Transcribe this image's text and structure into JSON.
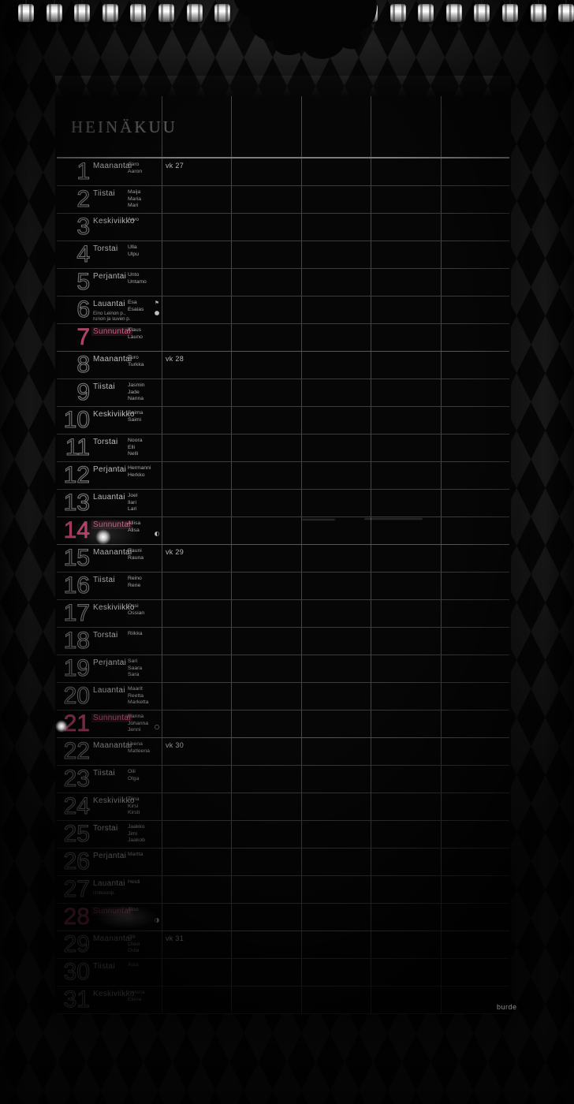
{
  "page": {
    "title": "HEINÄKUU",
    "brand": "burde"
  },
  "colors": {
    "sunday_accent": "#d6416f",
    "pattern_gray": "#2f2f2f",
    "pattern_black": "#0c0c0c",
    "paper": "#060606",
    "grid_line": "#474747"
  },
  "icons": {
    "flag": "⚑",
    "new-moon": "●",
    "first-quarter": "◐",
    "full-moon": "○",
    "last-quarter": "◑"
  },
  "days": [
    {
      "n": 1,
      "wd": "Maanantai",
      "names": [
        "Aaro",
        "Aaron"
      ],
      "wk": "vk 27"
    },
    {
      "n": 2,
      "wd": "Tiistai",
      "names": [
        "Maija",
        "Maria",
        "Mari"
      ]
    },
    {
      "n": 3,
      "wd": "Keskiviikko",
      "names": [
        "Arvo"
      ]
    },
    {
      "n": 4,
      "wd": "Torstai",
      "names": [
        "Ulla",
        "Ulpu"
      ]
    },
    {
      "n": 5,
      "wd": "Perjantai",
      "names": [
        "Unto",
        "Untamo"
      ]
    },
    {
      "n": 6,
      "wd": "Lauantai",
      "names": [
        "Esa",
        "Esaias"
      ],
      "special": "Eino Leinon p., runon ja suven p.",
      "flag": true,
      "moon": "new-moon"
    },
    {
      "n": 7,
      "wd": "Sunnuntai",
      "names": [
        "Klaus",
        "Launo"
      ],
      "sun": true
    },
    {
      "n": 8,
      "wd": "Maanantai",
      "names": [
        "Turo",
        "Turkka"
      ],
      "wk": "vk 28"
    },
    {
      "n": 9,
      "wd": "Tiistai",
      "names": [
        "Jasmin",
        "Jade",
        "Nanna"
      ]
    },
    {
      "n": 10,
      "wd": "Keskiviikko",
      "names": [
        "Saima",
        "Saimi"
      ]
    },
    {
      "n": 11,
      "wd": "Torstai",
      "names": [
        "Noora",
        "Elli",
        "Nelli"
      ]
    },
    {
      "n": 12,
      "wd": "Perjantai",
      "names": [
        "Hermanni",
        "Herkko"
      ]
    },
    {
      "n": 13,
      "wd": "Lauantai",
      "names": [
        "Joel",
        "Ilari",
        "Lari"
      ]
    },
    {
      "n": 14,
      "wd": "Sunnuntai",
      "names": [
        "Aliisa",
        "Alisa"
      ],
      "sun": true,
      "moon": "first-quarter"
    },
    {
      "n": 15,
      "wd": "Maanantai",
      "names": [
        "Rauni",
        "Rauna"
      ],
      "wk": "vk 29"
    },
    {
      "n": 16,
      "wd": "Tiistai",
      "names": [
        "Reino",
        "Rene"
      ]
    },
    {
      "n": 17,
      "wd": "Keskiviikko",
      "names": [
        "Ossi",
        "Ossian"
      ]
    },
    {
      "n": 18,
      "wd": "Torstai",
      "names": [
        "Riikka"
      ]
    },
    {
      "n": 19,
      "wd": "Perjantai",
      "names": [
        "Sari",
        "Saara",
        "Sara"
      ]
    },
    {
      "n": 20,
      "wd": "Lauantai",
      "names": [
        "Maarit",
        "Reetta",
        "Marketta"
      ]
    },
    {
      "n": 21,
      "wd": "Sunnuntai",
      "names": [
        "Hanna",
        "Johanna",
        "Jenni"
      ],
      "sun": true,
      "moon": "full-moon"
    },
    {
      "n": 22,
      "wd": "Maanantai",
      "names": [
        "Leena",
        "Matleena"
      ],
      "wk": "vk 30"
    },
    {
      "n": 23,
      "wd": "Tiistai",
      "names": [
        "Oili",
        "Olga"
      ]
    },
    {
      "n": 24,
      "wd": "Keskiviikko",
      "names": [
        "Tiina",
        "Kirsi",
        "Kirsti"
      ]
    },
    {
      "n": 25,
      "wd": "Torstai",
      "names": [
        "Jaakko",
        "Jimi",
        "Jaakob"
      ]
    },
    {
      "n": 26,
      "wd": "Perjantai",
      "names": [
        "Martta"
      ]
    },
    {
      "n": 27,
      "wd": "Lauantai",
      "names": [
        "Heidi"
      ],
      "special": "Unikeonp."
    },
    {
      "n": 28,
      "wd": "Sunnuntai",
      "names": [
        "Atso"
      ],
      "sun": true,
      "moon": "last-quarter"
    },
    {
      "n": 29,
      "wd": "Maanantai",
      "names": [
        "Olli",
        "Olavi",
        "Oula"
      ],
      "wk": "vk 31"
    },
    {
      "n": 30,
      "wd": "Tiistai",
      "names": [
        "Asta"
      ]
    },
    {
      "n": 31,
      "wd": "Keskiviikko",
      "names": [
        "Helena",
        "Elena"
      ]
    }
  ]
}
